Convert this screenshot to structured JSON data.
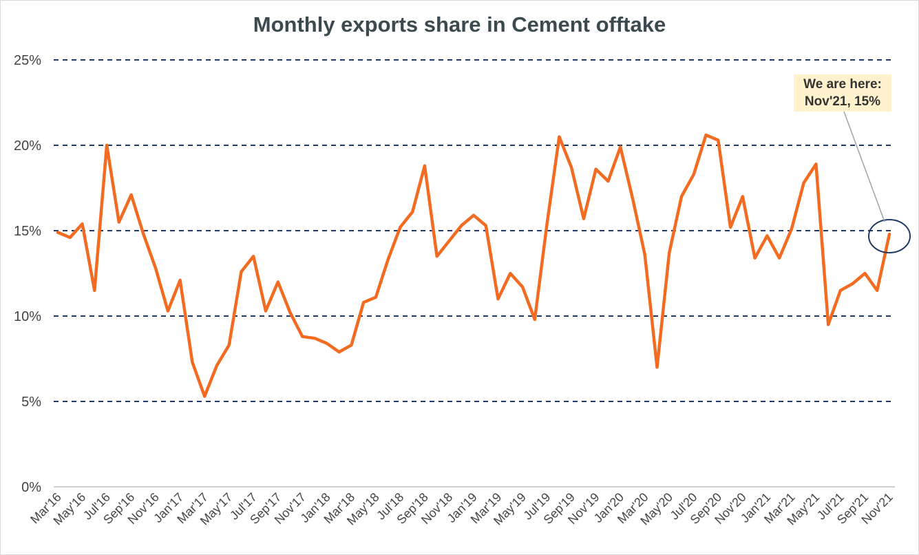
{
  "chart_data": {
    "type": "line",
    "title": "Monthly exports share in Cement offtake",
    "ylim": [
      0,
      25
    ],
    "yticks": [
      "0%",
      "5%",
      "10%",
      "15%",
      "20%",
      "25%"
    ],
    "ytick_values": [
      0,
      5,
      10,
      15,
      20,
      25
    ],
    "grid": "dashed horizontal",
    "xtick_labels": [
      "Mar'16",
      "May'16",
      "Jul'16",
      "Sep'16",
      "Nov'16",
      "Jan'17",
      "Mar'17",
      "May'17",
      "Jul'17",
      "Sep'17",
      "Nov'17",
      "Jan'18",
      "Mar'18",
      "May'18",
      "Jul'18",
      "Sep'18",
      "Nov'18",
      "Jan'19",
      "Mar'19",
      "May'19",
      "Jul'19",
      "Sep'19",
      "Nov'19",
      "Jan'20",
      "Mar'20",
      "May'20",
      "Jul'20",
      "Sep'20",
      "Nov'20",
      "Jan'21",
      "Mar'21",
      "May'21",
      "Jul'21",
      "Sep'21",
      "Nov'21"
    ],
    "series": [
      {
        "color": "#f26b21",
        "values": [
          14.9,
          14.6,
          15.4,
          11.5,
          20.0,
          15.5,
          17.1,
          14.8,
          12.8,
          10.3,
          12.1,
          7.3,
          5.3,
          7.1,
          8.3,
          12.6,
          13.5,
          10.3,
          12.0,
          10.2,
          8.8,
          8.7,
          8.4,
          7.9,
          8.3,
          10.8,
          11.1,
          13.3,
          15.2,
          16.1,
          18.8,
          13.5,
          14.4,
          15.3,
          15.9,
          15.3,
          11.0,
          12.5,
          11.7,
          9.8,
          15.4,
          20.5,
          18.7,
          15.7,
          18.6,
          17.9,
          19.9,
          16.9,
          13.6,
          7.0,
          13.7,
          17.0,
          18.3,
          20.6,
          20.3,
          15.2,
          17.0,
          13.4,
          14.7,
          13.4,
          15.1,
          17.8,
          18.9,
          9.5,
          11.5,
          11.9,
          12.5,
          11.5,
          14.8
        ]
      }
    ],
    "annotation": {
      "line1": "We are here:",
      "line2": "Nov'21, 15%",
      "background": "#fff2cc",
      "circle_color": "#1f3864"
    }
  }
}
